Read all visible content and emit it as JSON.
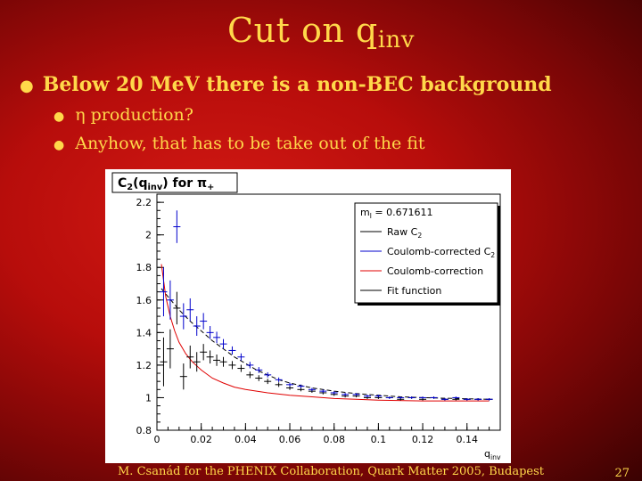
{
  "slide": {
    "title_main": "Cut on q",
    "title_sub": "inv",
    "bullet_main": "Below 20 MeV there is a non-BEC background",
    "sub_bullets": [
      "η production?",
      "Anyhow, that has to be take out of the fit"
    ],
    "footer": "M. Csanád for the PHENIX Collaboration, Quark Matter 2005, Budapest",
    "page_number": "27"
  },
  "chart_data": {
    "type": "scatter",
    "title_parts": [
      "C",
      "2",
      "(q",
      "inv",
      ") for π",
      "+"
    ],
    "xlabel_parts": [
      "q",
      "inv"
    ],
    "xlim": [
      0,
      0.155
    ],
    "ylim": [
      0.8,
      2.25
    ],
    "x_ticks": [
      "0",
      "0.02",
      "0.04",
      "0.06",
      "0.08",
      "0.1",
      "0.12",
      "0.14"
    ],
    "y_ticks": [
      "0.8",
      "1",
      "1.2",
      "1.4",
      "1.6",
      "1.8",
      "2",
      "2.2"
    ],
    "legend": {
      "header": "m = 0.671611",
      "header_sub": "l",
      "entries": [
        {
          "label_parts": [
            "Raw C",
            "2"
          ],
          "color": "#000000"
        },
        {
          "label_parts": [
            "Coulomb-corrected C",
            "2"
          ],
          "color": "#0000cc"
        },
        {
          "label_parts": [
            "Coulomb-correction"
          ],
          "color": "#e00000"
        },
        {
          "label_parts": [
            "Fit function"
          ],
          "color": "#000000"
        }
      ]
    },
    "series": [
      {
        "name": "Raw C2",
        "color": "#000000",
        "points": [
          {
            "x": 0.003,
            "y": 1.22,
            "err": 0.15
          },
          {
            "x": 0.006,
            "y": 1.3,
            "err": 0.12
          },
          {
            "x": 0.009,
            "y": 1.55,
            "err": 0.1
          },
          {
            "x": 0.012,
            "y": 1.13,
            "err": 0.08
          },
          {
            "x": 0.015,
            "y": 1.25,
            "err": 0.07
          },
          {
            "x": 0.018,
            "y": 1.22,
            "err": 0.06
          },
          {
            "x": 0.021,
            "y": 1.28,
            "err": 0.05
          },
          {
            "x": 0.024,
            "y": 1.25,
            "err": 0.04
          },
          {
            "x": 0.027,
            "y": 1.23,
            "err": 0.035
          },
          {
            "x": 0.03,
            "y": 1.22,
            "err": 0.03
          },
          {
            "x": 0.034,
            "y": 1.2,
            "err": 0.025
          },
          {
            "x": 0.038,
            "y": 1.18,
            "err": 0.022
          },
          {
            "x": 0.042,
            "y": 1.14,
            "err": 0.02
          },
          {
            "x": 0.046,
            "y": 1.12,
            "err": 0.018
          },
          {
            "x": 0.05,
            "y": 1.1,
            "err": 0.016
          },
          {
            "x": 0.055,
            "y": 1.08,
            "err": 0.014
          },
          {
            "x": 0.06,
            "y": 1.06,
            "err": 0.012
          },
          {
            "x": 0.065,
            "y": 1.05,
            "err": 0.011
          },
          {
            "x": 0.07,
            "y": 1.04,
            "err": 0.01
          },
          {
            "x": 0.075,
            "y": 1.03,
            "err": 0.01
          },
          {
            "x": 0.08,
            "y": 1.02,
            "err": 0.009
          },
          {
            "x": 0.085,
            "y": 1.01,
            "err": 0.009
          },
          {
            "x": 0.09,
            "y": 1.01,
            "err": 0.008
          },
          {
            "x": 0.095,
            "y": 1.0,
            "err": 0.008
          },
          {
            "x": 0.1,
            "y": 1.0,
            "err": 0.008
          },
          {
            "x": 0.105,
            "y": 1.0,
            "err": 0.007
          },
          {
            "x": 0.11,
            "y": 0.99,
            "err": 0.007
          },
          {
            "x": 0.115,
            "y": 1.0,
            "err": 0.007
          },
          {
            "x": 0.12,
            "y": 0.99,
            "err": 0.007
          },
          {
            "x": 0.125,
            "y": 1.0,
            "err": 0.007
          },
          {
            "x": 0.13,
            "y": 0.99,
            "err": 0.007
          },
          {
            "x": 0.135,
            "y": 0.99,
            "err": 0.007
          },
          {
            "x": 0.14,
            "y": 0.99,
            "err": 0.007
          },
          {
            "x": 0.145,
            "y": 0.99,
            "err": 0.007
          },
          {
            "x": 0.15,
            "y": 0.99,
            "err": 0.007
          }
        ]
      },
      {
        "name": "Coulomb-corrected C2",
        "color": "#0000cc",
        "points": [
          {
            "x": 0.003,
            "y": 1.65,
            "err": 0.15
          },
          {
            "x": 0.006,
            "y": 1.6,
            "err": 0.12
          },
          {
            "x": 0.009,
            "y": 2.05,
            "err": 0.1
          },
          {
            "x": 0.012,
            "y": 1.5,
            "err": 0.08
          },
          {
            "x": 0.015,
            "y": 1.54,
            "err": 0.07
          },
          {
            "x": 0.018,
            "y": 1.44,
            "err": 0.06
          },
          {
            "x": 0.021,
            "y": 1.47,
            "err": 0.05
          },
          {
            "x": 0.024,
            "y": 1.4,
            "err": 0.04
          },
          {
            "x": 0.027,
            "y": 1.37,
            "err": 0.035
          },
          {
            "x": 0.03,
            "y": 1.33,
            "err": 0.03
          },
          {
            "x": 0.034,
            "y": 1.29,
            "err": 0.025
          },
          {
            "x": 0.038,
            "y": 1.25,
            "err": 0.022
          },
          {
            "x": 0.042,
            "y": 1.2,
            "err": 0.02
          },
          {
            "x": 0.046,
            "y": 1.17,
            "err": 0.018
          },
          {
            "x": 0.05,
            "y": 1.14,
            "err": 0.016
          },
          {
            "x": 0.055,
            "y": 1.11,
            "err": 0.014
          },
          {
            "x": 0.06,
            "y": 1.08,
            "err": 0.012
          },
          {
            "x": 0.065,
            "y": 1.07,
            "err": 0.011
          },
          {
            "x": 0.07,
            "y": 1.05,
            "err": 0.01
          },
          {
            "x": 0.075,
            "y": 1.04,
            "err": 0.01
          },
          {
            "x": 0.08,
            "y": 1.03,
            "err": 0.009
          },
          {
            "x": 0.085,
            "y": 1.02,
            "err": 0.009
          },
          {
            "x": 0.09,
            "y": 1.02,
            "err": 0.008
          },
          {
            "x": 0.095,
            "y": 1.01,
            "err": 0.008
          },
          {
            "x": 0.1,
            "y": 1.01,
            "err": 0.008
          },
          {
            "x": 0.105,
            "y": 1.0,
            "err": 0.007
          },
          {
            "x": 0.11,
            "y": 1.0,
            "err": 0.007
          },
          {
            "x": 0.115,
            "y": 1.0,
            "err": 0.007
          },
          {
            "x": 0.12,
            "y": 1.0,
            "err": 0.007
          },
          {
            "x": 0.125,
            "y": 1.0,
            "err": 0.007
          },
          {
            "x": 0.13,
            "y": 0.99,
            "err": 0.007
          },
          {
            "x": 0.135,
            "y": 1.0,
            "err": 0.007
          },
          {
            "x": 0.14,
            "y": 0.99,
            "err": 0.007
          },
          {
            "x": 0.145,
            "y": 0.99,
            "err": 0.007
          },
          {
            "x": 0.15,
            "y": 0.99,
            "err": 0.007
          }
        ]
      }
    ],
    "curves": [
      {
        "name": "Coulomb-correction",
        "color": "#e00000",
        "dash": "",
        "points": [
          [
            0.002,
            1.82
          ],
          [
            0.004,
            1.62
          ],
          [
            0.006,
            1.5
          ],
          [
            0.008,
            1.41
          ],
          [
            0.01,
            1.34
          ],
          [
            0.013,
            1.27
          ],
          [
            0.016,
            1.22
          ],
          [
            0.02,
            1.17
          ],
          [
            0.025,
            1.12
          ],
          [
            0.03,
            1.09
          ],
          [
            0.035,
            1.065
          ],
          [
            0.04,
            1.05
          ],
          [
            0.05,
            1.03
          ],
          [
            0.06,
            1.015
          ],
          [
            0.07,
            1.005
          ],
          [
            0.08,
            0.995
          ],
          [
            0.09,
            0.99
          ],
          [
            0.1,
            0.985
          ],
          [
            0.12,
            0.98
          ],
          [
            0.15,
            0.98
          ]
        ]
      },
      {
        "name": "Fit function",
        "color": "#000000",
        "dash": "5,3",
        "points": [
          [
            0.002,
            1.67
          ],
          [
            0.005,
            1.62
          ],
          [
            0.01,
            1.54
          ],
          [
            0.015,
            1.47
          ],
          [
            0.02,
            1.41
          ],
          [
            0.025,
            1.35
          ],
          [
            0.03,
            1.3
          ],
          [
            0.035,
            1.25
          ],
          [
            0.04,
            1.21
          ],
          [
            0.045,
            1.17
          ],
          [
            0.05,
            1.14
          ],
          [
            0.055,
            1.11
          ],
          [
            0.06,
            1.09
          ],
          [
            0.07,
            1.06
          ],
          [
            0.08,
            1.04
          ],
          [
            0.09,
            1.025
          ],
          [
            0.1,
            1.015
          ],
          [
            0.11,
            1.005
          ],
          [
            0.12,
            1.0
          ],
          [
            0.135,
            0.995
          ],
          [
            0.15,
            0.99
          ]
        ]
      }
    ],
    "grid": false,
    "legend_position": "top-right"
  },
  "colors": {
    "text_accent": "#ffd84a",
    "background": "#c8110e"
  }
}
